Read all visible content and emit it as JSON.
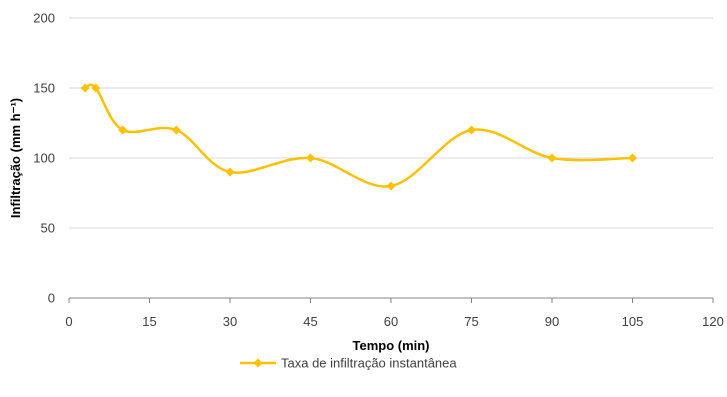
{
  "colors": {
    "series": "#FFC000",
    "grid": "#D9D9D9",
    "axis": "#868686"
  },
  "chart_data": {
    "type": "line",
    "smooth": true,
    "title": "",
    "xlabel": "Tempo (min)",
    "ylabel": "Infiltração (mm h⁻¹)",
    "xlim": [
      0,
      120
    ],
    "ylim": [
      0,
      200
    ],
    "xticks": [
      0,
      15,
      30,
      45,
      60,
      75,
      90,
      105,
      120
    ],
    "yticks": [
      0,
      50,
      100,
      150,
      200
    ],
    "grid": "horizontal",
    "legend_position": "bottom",
    "series": [
      {
        "name": "Taxa de infiltração instantânea",
        "x": [
          3,
          5,
          10,
          20,
          30,
          45,
          60,
          75,
          90,
          105
        ],
        "y": [
          150,
          150,
          120,
          120,
          90,
          100,
          80,
          120,
          100,
          100
        ]
      }
    ]
  }
}
